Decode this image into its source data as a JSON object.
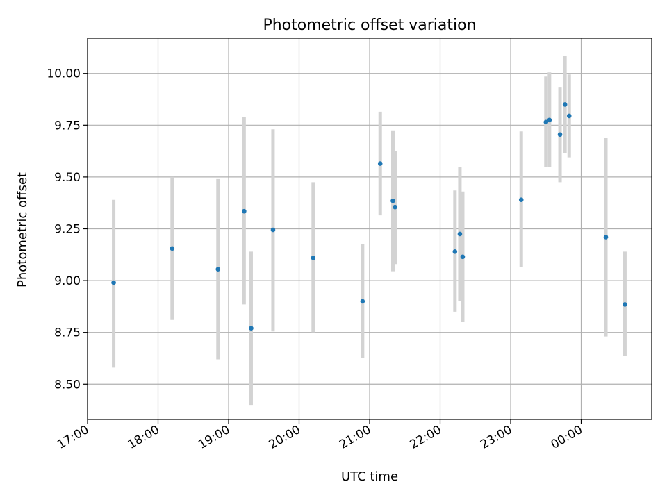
{
  "chart_data": {
    "type": "scatter",
    "title": "Photometric offset variation",
    "xlabel": "UTC time",
    "ylabel": "Photometric offset",
    "grid": true,
    "xlim_hours": [
      17.0,
      25.0
    ],
    "ylim": [
      8.33,
      10.17
    ],
    "x_ticks": [
      {
        "hours": 17,
        "label": "17:00"
      },
      {
        "hours": 18,
        "label": "18:00"
      },
      {
        "hours": 19,
        "label": "19:00"
      },
      {
        "hours": 20,
        "label": "20:00"
      },
      {
        "hours": 21,
        "label": "21:00"
      },
      {
        "hours": 22,
        "label": "22:00"
      },
      {
        "hours": 23,
        "label": "23:00"
      },
      {
        "hours": 24,
        "label": "00:00"
      }
    ],
    "y_ticks": [
      {
        "value": 8.5,
        "label": "8.50"
      },
      {
        "value": 8.75,
        "label": "8.75"
      },
      {
        "value": 9.0,
        "label": "9.00"
      },
      {
        "value": 9.25,
        "label": "9.25"
      },
      {
        "value": 9.5,
        "label": "9.50"
      },
      {
        "value": 9.75,
        "label": "9.75"
      },
      {
        "value": 10.0,
        "label": "10.00"
      }
    ],
    "series": [
      {
        "name": "offset",
        "color": "#1f77b4",
        "errorbar_color": "#d3d3d3",
        "points": [
          {
            "x": 17.37,
            "y": 8.99,
            "ylo": 8.58,
            "yhi": 9.39
          },
          {
            "x": 18.2,
            "y": 9.155,
            "ylo": 8.81,
            "yhi": 9.5
          },
          {
            "x": 18.85,
            "y": 9.055,
            "ylo": 8.62,
            "yhi": 9.49
          },
          {
            "x": 19.22,
            "y": 9.335,
            "ylo": 8.885,
            "yhi": 9.79
          },
          {
            "x": 19.32,
            "y": 8.77,
            "ylo": 8.4,
            "yhi": 9.14
          },
          {
            "x": 19.63,
            "y": 9.245,
            "ylo": 8.755,
            "yhi": 9.73
          },
          {
            "x": 20.2,
            "y": 9.11,
            "ylo": 8.75,
            "yhi": 9.475
          },
          {
            "x": 20.9,
            "y": 8.9,
            "ylo": 8.625,
            "yhi": 9.175
          },
          {
            "x": 21.15,
            "y": 9.565,
            "ylo": 9.315,
            "yhi": 9.815
          },
          {
            "x": 21.33,
            "y": 9.385,
            "ylo": 9.045,
            "yhi": 9.725
          },
          {
            "x": 21.36,
            "y": 9.355,
            "ylo": 9.08,
            "yhi": 9.625
          },
          {
            "x": 22.21,
            "y": 9.14,
            "ylo": 8.85,
            "yhi": 9.435
          },
          {
            "x": 22.28,
            "y": 9.225,
            "ylo": 8.9,
            "yhi": 9.55
          },
          {
            "x": 22.32,
            "y": 9.115,
            "ylo": 8.8,
            "yhi": 9.43
          },
          {
            "x": 23.15,
            "y": 9.39,
            "ylo": 9.065,
            "yhi": 9.72
          },
          {
            "x": 23.5,
            "y": 9.765,
            "ylo": 9.55,
            "yhi": 9.985
          },
          {
            "x": 23.55,
            "y": 9.775,
            "ylo": 9.55,
            "yhi": 10.005
          },
          {
            "x": 23.7,
            "y": 9.705,
            "ylo": 9.475,
            "yhi": 9.935
          },
          {
            "x": 23.77,
            "y": 9.85,
            "ylo": 9.615,
            "yhi": 10.085
          },
          {
            "x": 23.83,
            "y": 9.795,
            "ylo": 9.595,
            "yhi": 9.995
          },
          {
            "x": 24.35,
            "y": 9.21,
            "ylo": 8.73,
            "yhi": 9.69
          },
          {
            "x": 24.62,
            "y": 8.885,
            "ylo": 8.635,
            "yhi": 9.14
          }
        ]
      }
    ]
  }
}
